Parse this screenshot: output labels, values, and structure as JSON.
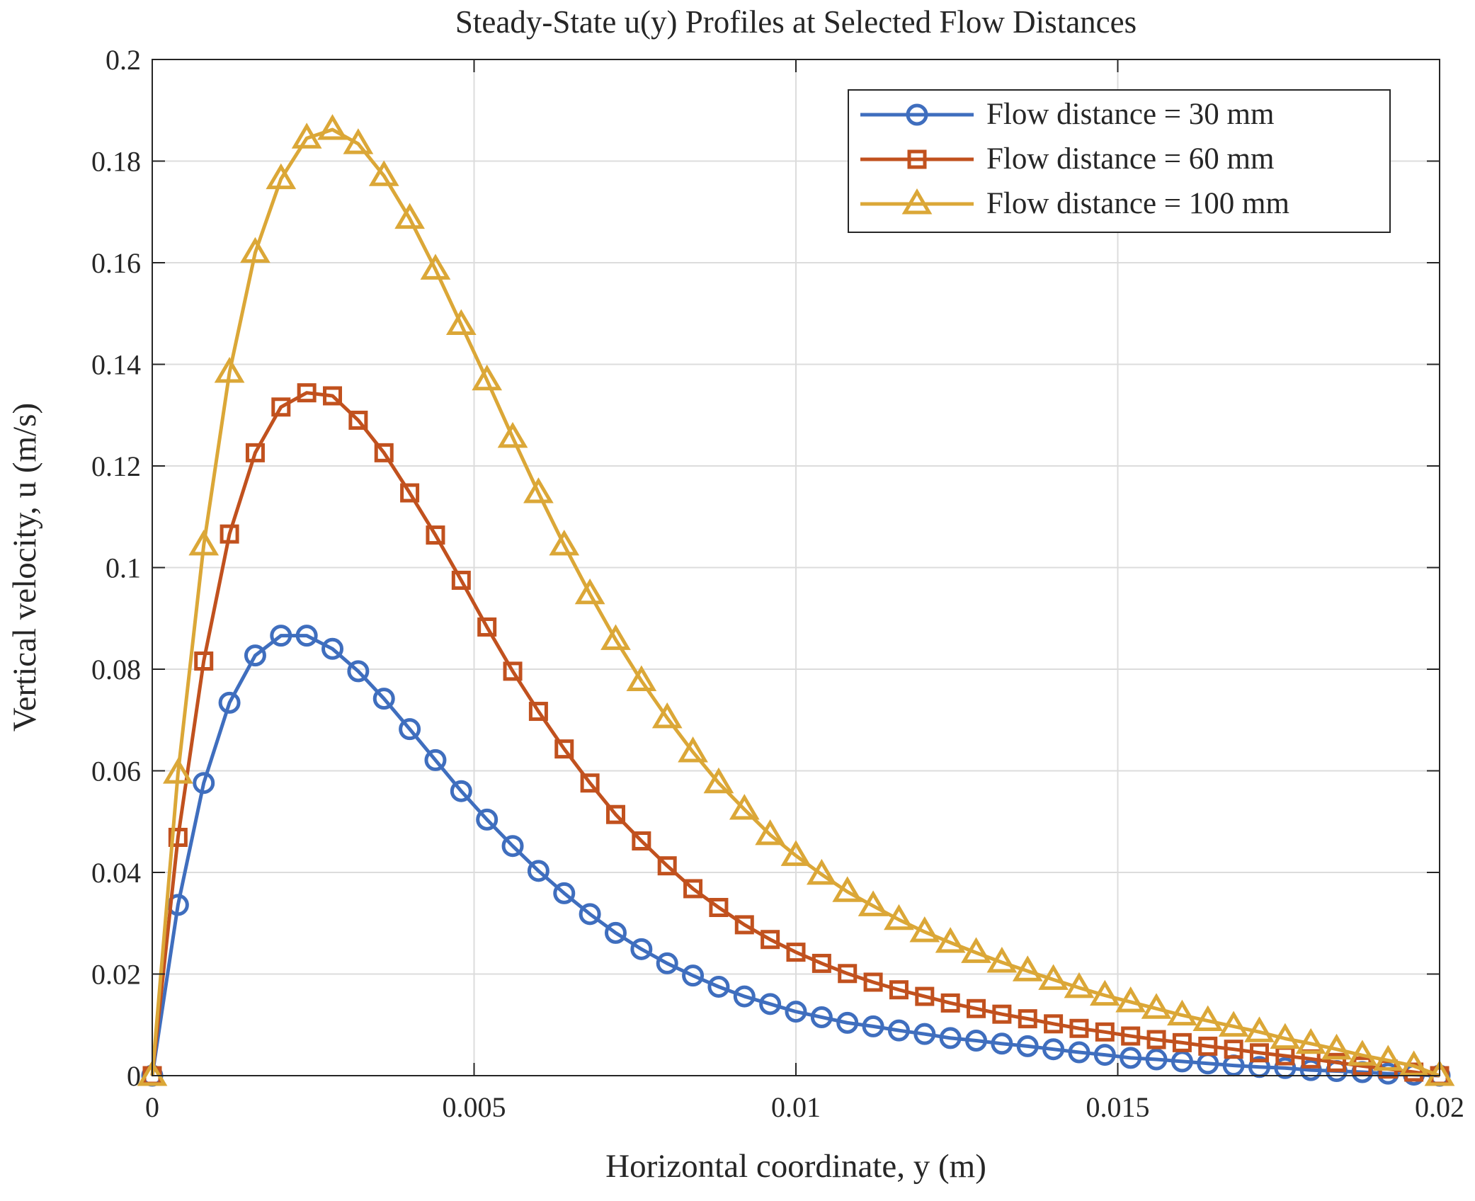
{
  "chart_data": {
    "type": "line",
    "title": "Steady-State u(y) Profiles at Selected Flow Distances",
    "xlabel": "Horizontal coordinate, y (m)",
    "ylabel": "Vertical velocity, u (m/s)",
    "xlim": [
      0,
      0.02
    ],
    "ylim": [
      0,
      0.2
    ],
    "xticks": [
      0,
      0.005,
      0.01,
      0.015,
      0.02
    ],
    "xtick_labels": [
      "0",
      "0.005",
      "0.01",
      "0.015",
      "0.02"
    ],
    "yticks": [
      0,
      0.02,
      0.04,
      0.06,
      0.08,
      0.1,
      0.12,
      0.14,
      0.16,
      0.18,
      0.2
    ],
    "ytick_labels": [
      "0",
      "0.02",
      "0.04",
      "0.06",
      "0.08",
      "0.1",
      "0.12",
      "0.14",
      "0.16",
      "0.18",
      "0.2"
    ],
    "grid": true,
    "legend_position": "top-right",
    "x_step": 0.0004,
    "series": [
      {
        "name": "Flow distance = 30 mm",
        "color": "#3F6EBE",
        "marker": "circle",
        "values": [
          0,
          0.0336,
          0.0576,
          0.0734,
          0.0827,
          0.0866,
          0.0866,
          0.084,
          0.0796,
          0.0742,
          0.0682,
          0.0621,
          0.056,
          0.0504,
          0.0452,
          0.0403,
          0.0359,
          0.0318,
          0.0281,
          0.0249,
          0.0221,
          0.0197,
          0.0175,
          0.0156,
          0.0141,
          0.0126,
          0.0115,
          0.0104,
          0.0097,
          0.0089,
          0.0082,
          0.0074,
          0.0069,
          0.0063,
          0.0058,
          0.0052,
          0.0046,
          0.0041,
          0.0035,
          0.0032,
          0.0028,
          0.0024,
          0.002,
          0.0017,
          0.0015,
          0.0011,
          0.0009,
          0.0007,
          0.0004,
          0.0002,
          0
        ]
      },
      {
        "name": "Flow distance = 60 mm",
        "color": "#C1511E",
        "marker": "square",
        "values": [
          0,
          0.0469,
          0.0816,
          0.1066,
          0.1226,
          0.1316,
          0.1344,
          0.1338,
          0.129,
          0.1226,
          0.1147,
          0.1064,
          0.0975,
          0.0883,
          0.0796,
          0.0717,
          0.0643,
          0.0576,
          0.0514,
          0.0462,
          0.0413,
          0.0368,
          0.0331,
          0.0297,
          0.0268,
          0.0243,
          0.0221,
          0.0201,
          0.0184,
          0.0169,
          0.0156,
          0.0143,
          0.0132,
          0.0121,
          0.0112,
          0.0102,
          0.0093,
          0.0086,
          0.0078,
          0.0071,
          0.0065,
          0.0058,
          0.0052,
          0.0045,
          0.0039,
          0.0033,
          0.0026,
          0.0019,
          0.0013,
          0.0007,
          0
        ]
      },
      {
        "name": "Flow distance = 100 mm",
        "color": "#DBA737",
        "marker": "triangle",
        "values": [
          0,
          0.0595,
          0.1044,
          0.1384,
          0.162,
          0.1765,
          0.1845,
          0.1862,
          0.1834,
          0.1771,
          0.1687,
          0.1587,
          0.1478,
          0.1369,
          0.1256,
          0.1147,
          0.1044,
          0.0948,
          0.0858,
          0.0777,
          0.0704,
          0.0637,
          0.0576,
          0.0524,
          0.0474,
          0.0433,
          0.0396,
          0.0362,
          0.0334,
          0.0307,
          0.0283,
          0.0262,
          0.0242,
          0.0223,
          0.0206,
          0.0189,
          0.0173,
          0.0158,
          0.0145,
          0.0132,
          0.0119,
          0.0108,
          0.0097,
          0.0086,
          0.0073,
          0.0063,
          0.0052,
          0.004,
          0.003,
          0.0019,
          0
        ]
      }
    ]
  }
}
